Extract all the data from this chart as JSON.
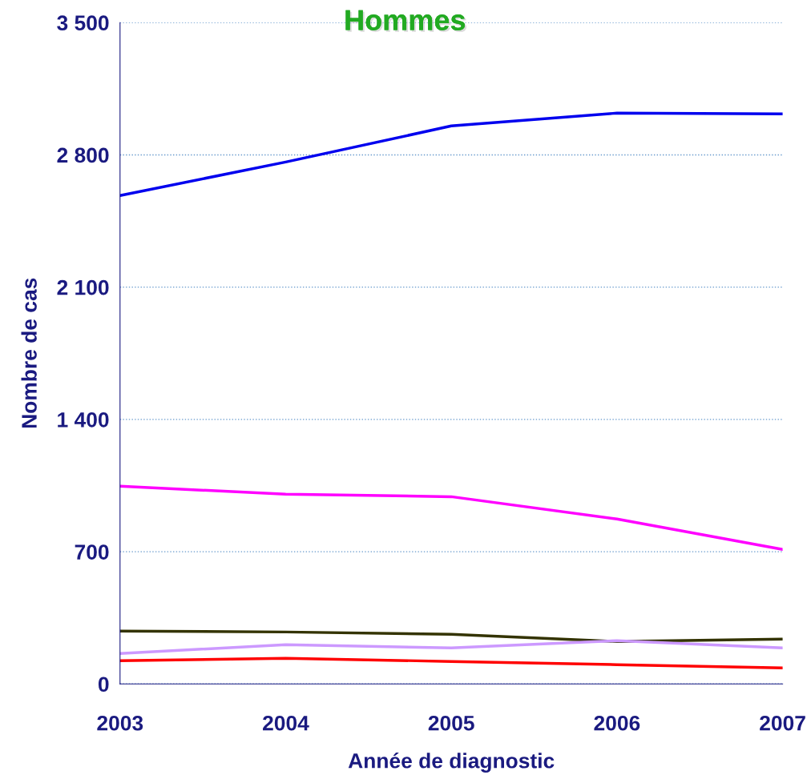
{
  "chart_data": {
    "type": "line",
    "title": "Hommes",
    "xlabel": "Année de diagnostic",
    "ylabel": "Nombre de cas",
    "x": [
      2003,
      2004,
      2005,
      2006,
      2007
    ],
    "series": [
      {
        "color": "#0000ee",
        "values": [
          2585,
          2762,
          2953,
          3021,
          3017
        ]
      },
      {
        "color": "#ff00ff",
        "values": [
          1047,
          1004,
          991,
          873,
          712
        ]
      },
      {
        "color": "#333300",
        "values": [
          280,
          275,
          263,
          225,
          237
        ]
      },
      {
        "color": "#cc99ff",
        "values": [
          161,
          208,
          191,
          229,
          191
        ]
      },
      {
        "color": "#ff0000",
        "values": [
          123,
          136,
          119,
          102,
          85
        ]
      }
    ],
    "xlim": [
      2003,
      2007
    ],
    "xticks": [
      2003,
      2004,
      2005,
      2006,
      2007
    ],
    "ylim": [
      0,
      3500
    ],
    "yticks": [
      0,
      {
        "value": 700,
        "label": "700"
      },
      {
        "value": 1400,
        "label": "1 400"
      },
      {
        "value": 2100,
        "label": "2 100"
      },
      {
        "value": 2800,
        "label": "2 800"
      },
      {
        "value": 3500,
        "label": "3 500"
      }
    ],
    "grid": "y",
    "legend": false,
    "marker": "none",
    "line_style": "solid"
  }
}
